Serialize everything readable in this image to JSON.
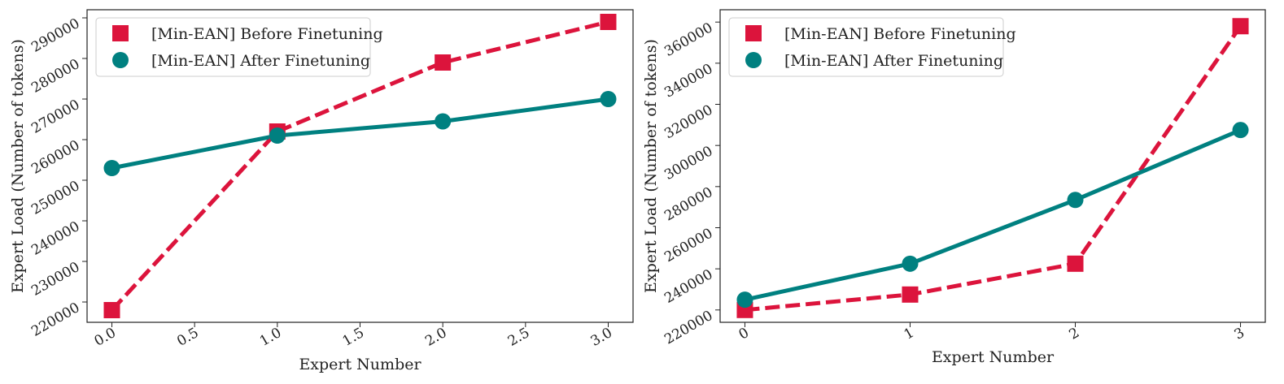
{
  "chart_data": [
    {
      "type": "line",
      "xlabel": "Expert Number",
      "ylabel": "Expert Load (Number of tokens)",
      "xlim": [
        -0.15,
        3.15
      ],
      "ylim": [
        215000,
        292000
      ],
      "x_ticks": [
        0.0,
        0.5,
        1.0,
        1.5,
        2.0,
        2.5,
        3.0
      ],
      "x_tick_labels": [
        "0.0",
        "0.5",
        "1.0",
        "1.5",
        "2.0",
        "2.5",
        "3.0"
      ],
      "y_ticks": [
        220000,
        230000,
        240000,
        250000,
        260000,
        270000,
        280000,
        290000
      ],
      "y_tick_labels": [
        "220000",
        "230000",
        "240000",
        "250000",
        "260000",
        "270000",
        "280000",
        "290000"
      ],
      "legend_position": "top-left",
      "series": [
        {
          "name": "[Min-EAN] Before Finetuning",
          "x": [
            0,
            1,
            2,
            3
          ],
          "values": [
            218000,
            262000,
            279000,
            289000
          ],
          "color": "#dc143c",
          "style": "dashed",
          "marker": "square"
        },
        {
          "name": "[Min-EAN] After Finetuning",
          "x": [
            0,
            1,
            2,
            3
          ],
          "values": [
            253000,
            261000,
            264500,
            270000
          ],
          "color": "#008080",
          "style": "solid",
          "marker": "circle"
        }
      ]
    },
    {
      "type": "line",
      "xlabel": "Expert Number",
      "ylabel": "Expert Load (Number of tokens)",
      "xlim": [
        -0.15,
        3.15
      ],
      "ylim": [
        214000,
        366000
      ],
      "x_ticks": [
        0,
        1,
        2,
        3
      ],
      "x_tick_labels": [
        "0",
        "1",
        "2",
        "3"
      ],
      "y_ticks": [
        220000,
        240000,
        260000,
        280000,
        300000,
        320000,
        340000,
        360000
      ],
      "y_tick_labels": [
        "220000",
        "240000",
        "260000",
        "280000",
        "300000",
        "320000",
        "340000",
        "360000"
      ],
      "legend_position": "top-left",
      "series": [
        {
          "name": "[Min-EAN] Before Finetuning",
          "x": [
            0,
            1,
            2,
            3
          ],
          "values": [
            220000,
            227500,
            242500,
            358000
          ],
          "color": "#dc143c",
          "style": "dashed",
          "marker": "square"
        },
        {
          "name": "[Min-EAN] After Finetuning",
          "x": [
            0,
            1,
            2,
            3
          ],
          "values": [
            225000,
            242500,
            273500,
            307500
          ],
          "color": "#008080",
          "style": "solid",
          "marker": "circle"
        }
      ]
    }
  ]
}
